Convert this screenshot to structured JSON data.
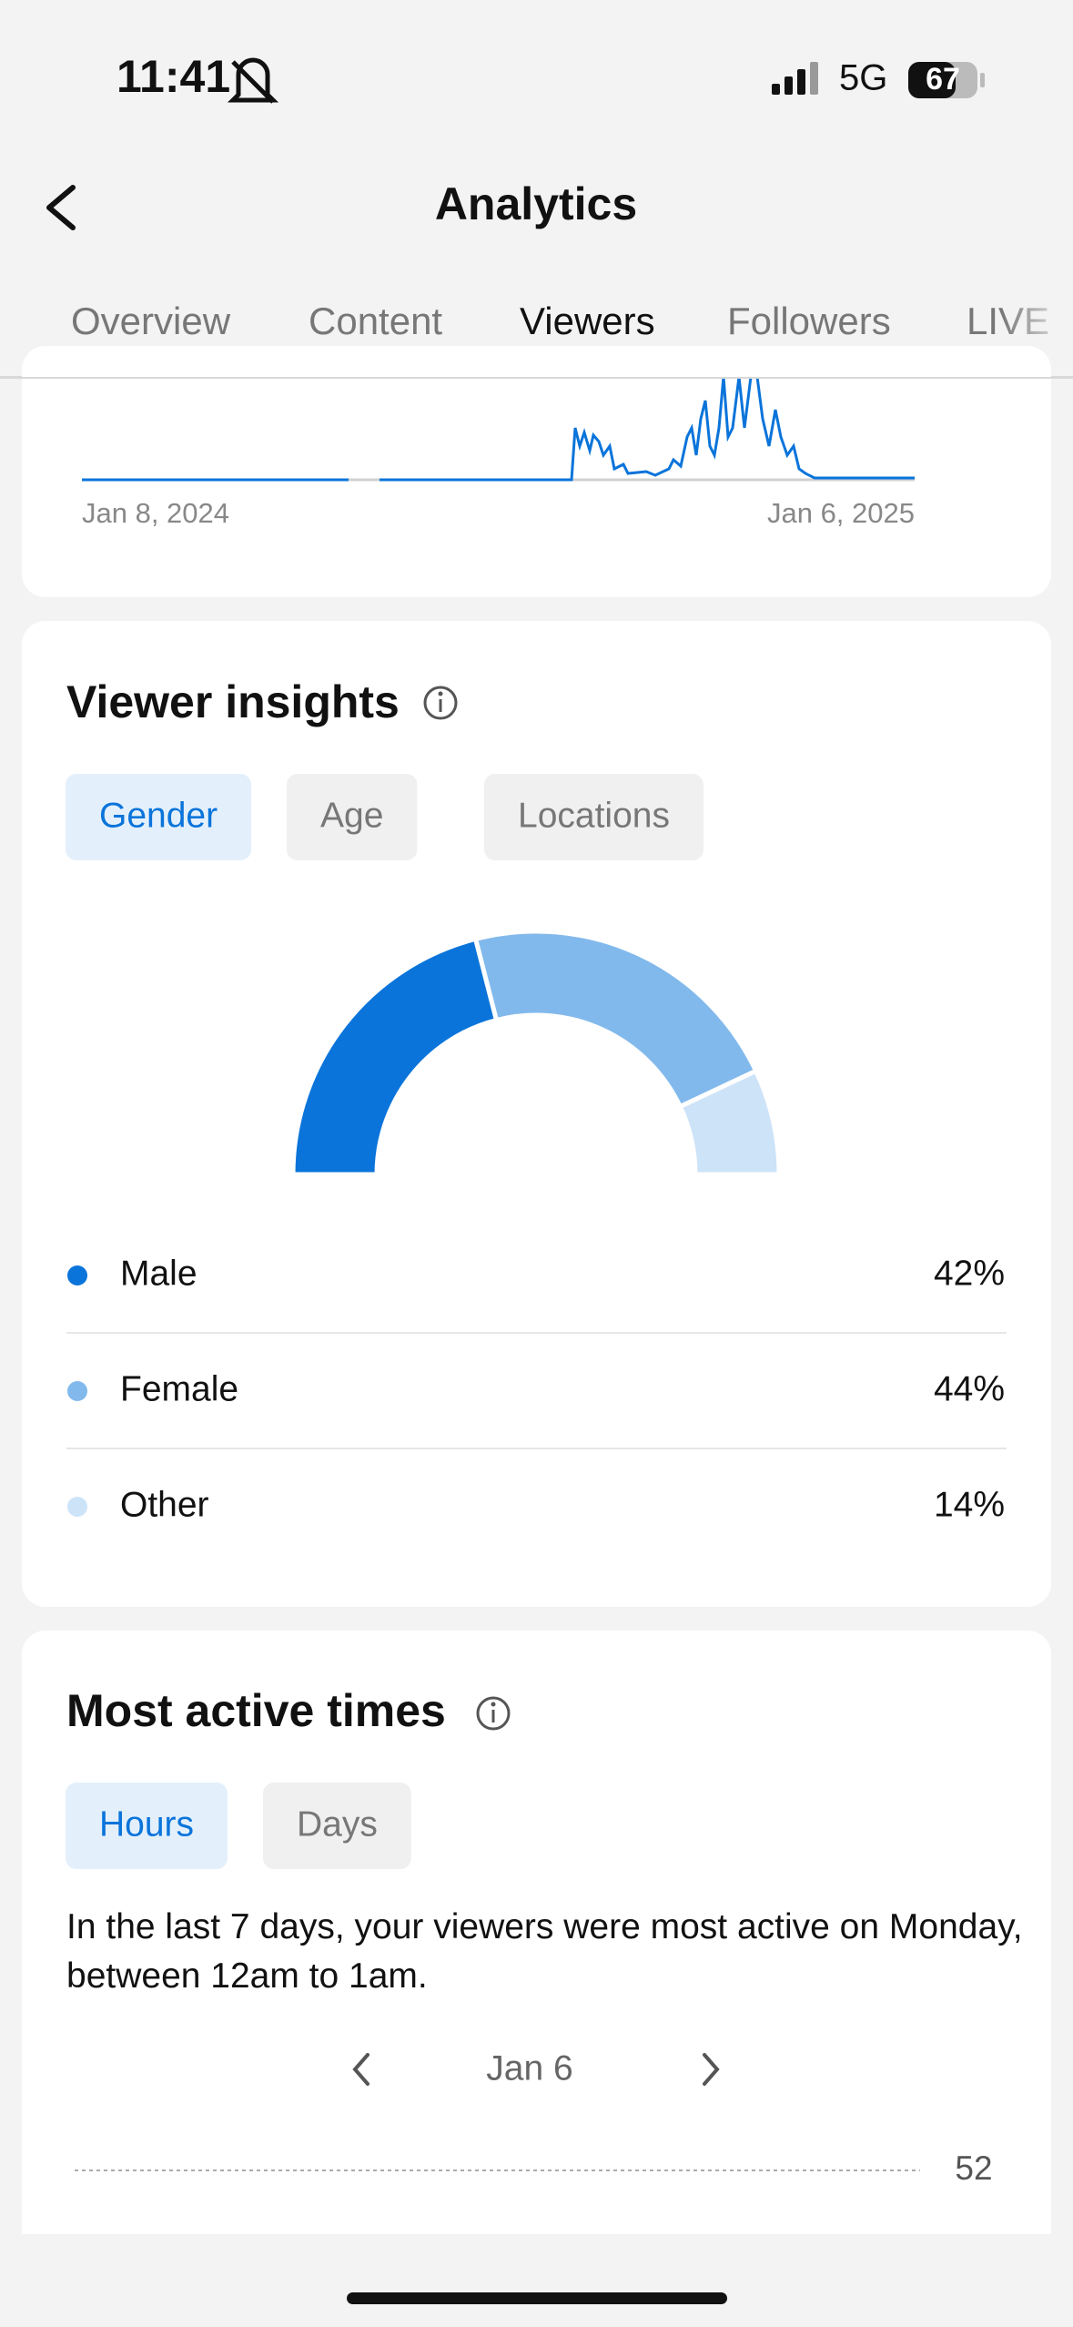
{
  "status_bar": {
    "time": "11:41",
    "network": "5G",
    "battery": "67"
  },
  "header": {
    "title": "Analytics"
  },
  "tabs": [
    "Overview",
    "Content",
    "Viewers",
    "Followers",
    "LIVE"
  ],
  "selected_tab": 2,
  "views_chart": {
    "x_labels": [
      "Jan 8, 2024",
      "Jan 6, 2025"
    ]
  },
  "viewer_insights": {
    "title": "Viewer insights",
    "filters": [
      "Gender",
      "Age",
      "Locations"
    ],
    "selected_filter": 0
  },
  "chart_data": [
    {
      "type": "pie",
      "half": true,
      "donut": true,
      "categories": [
        "Male",
        "Female",
        "Other"
      ],
      "values": [
        42,
        44,
        14
      ],
      "value_labels": [
        "42%",
        "44%",
        "14%"
      ],
      "colors": [
        "#0a74da",
        "#82b9ec",
        "#cde3f8"
      ]
    },
    {
      "type": "bar",
      "yticks": [
        52
      ],
      "grid": true
    }
  ],
  "most_active_times": {
    "title": "Most active times",
    "filters": [
      "Hours",
      "Days"
    ],
    "selected_filter": 0,
    "description": "In the last 7 days, your viewers were most active on Monday, between 12am to 1am.",
    "date": "Jan 6"
  }
}
